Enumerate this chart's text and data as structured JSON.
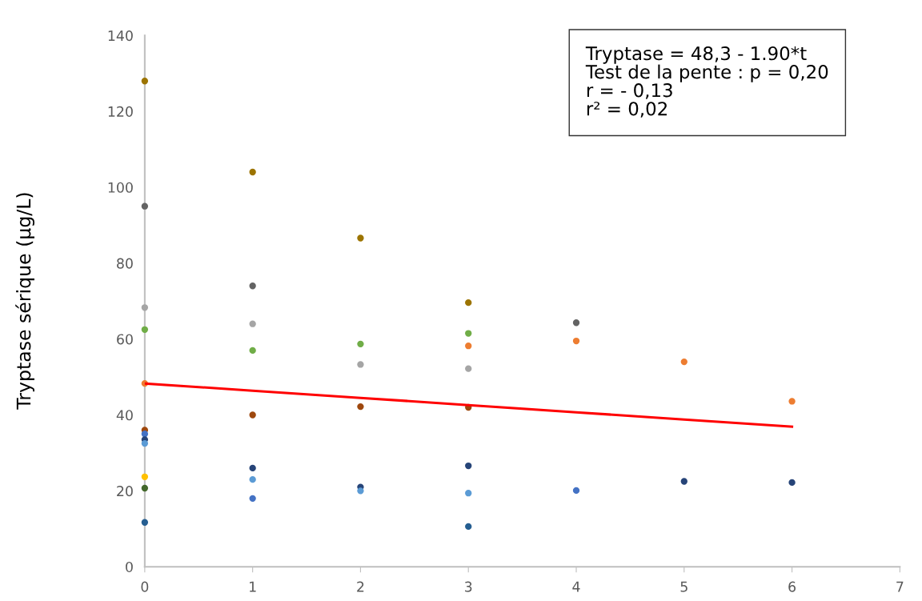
{
  "chart_data": {
    "type": "scatter",
    "ylabel": "Tryptase sérique (µg/L)",
    "xlim": [
      0,
      7
    ],
    "xticks": [
      0,
      1,
      2,
      3,
      4,
      5,
      6,
      7
    ],
    "ylim": [
      0,
      140
    ],
    "yticks": [
      0,
      20,
      40,
      60,
      80,
      100,
      120,
      140
    ],
    "grid": false,
    "marker": "circle",
    "annotations": [
      "Tryptase = 48,3 - 1.90*t",
      "Test de la pente : p = 0,20",
      "r = - 0,13",
      "r² = 0,02"
    ],
    "series": [
      {
        "x": [
          0,
          0,
          0,
          0,
          0,
          0,
          0,
          0,
          0,
          0,
          0,
          0,
          1,
          1,
          1,
          1,
          1,
          1,
          1,
          1,
          2,
          2,
          2,
          2,
          2,
          2,
          3,
          3,
          3,
          3,
          3,
          3,
          3,
          3,
          4,
          4,
          4,
          5,
          5,
          6,
          6
        ],
        "values": [
          128,
          95,
          68.3,
          62.5,
          48.3,
          36,
          35,
          33.5,
          32.5,
          23.7,
          20.7,
          11.7,
          104,
          74,
          64,
          57,
          40,
          26,
          23,
          18,
          86.6,
          58.7,
          53.3,
          42.2,
          21,
          20,
          69.6,
          61.5,
          58.2,
          52.2,
          42,
          26.6,
          19.4,
          10.6,
          64.3,
          59.5,
          20.1,
          54,
          22.5,
          43.6,
          22.2
        ],
        "colors": [
          "#9c7400",
          "#636363",
          "#a5a5a5",
          "#70ad47",
          "#ed7d31",
          "#9e480e",
          "#4472c4",
          "#264478",
          "#5b9bd5",
          "#ffc000",
          "#43682b",
          "#255e91",
          "#9c7400",
          "#636363",
          "#a5a5a5",
          "#70ad47",
          "#9e480e",
          "#264478",
          "#5b9bd5",
          "#4472c4",
          "#9c7400",
          "#70ad47",
          "#a5a5a5",
          "#9e480e",
          "#264478",
          "#5b9bd5",
          "#9c7400",
          "#70ad47",
          "#ed7d31",
          "#a5a5a5",
          "#9e480e",
          "#264478",
          "#5b9bd5",
          "#255e91",
          "#636363",
          "#ed7d31",
          "#4472c4",
          "#ed7d31",
          "#264478",
          "#ed7d31",
          "#264478"
        ]
      },
      {
        "type": "line",
        "x": [
          0,
          1,
          2,
          3,
          4,
          5,
          6
        ],
        "values": [
          48.3,
          46.4,
          44.5,
          42.6,
          40.7,
          38.8,
          36.9
        ],
        "color": "#ff0000",
        "marker": "none",
        "line_style": "solid"
      }
    ]
  }
}
